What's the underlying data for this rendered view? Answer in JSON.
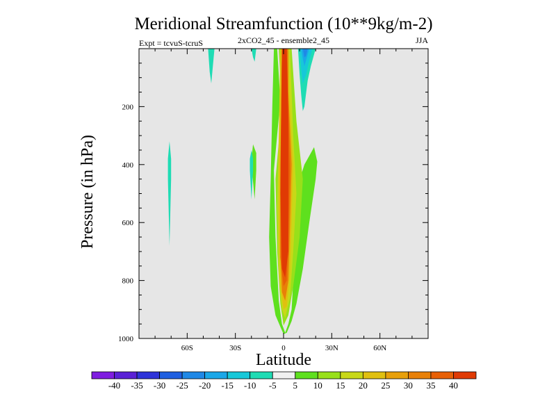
{
  "chart_data": {
    "type": "contour",
    "title": "Meridional Streamfunction (10**9kg/m-2)",
    "subtitle": "2xCO2_45 - ensemble2_45",
    "left_label": "Expt = tcvuS-tcruS",
    "right_label": "JJA",
    "xlabel": "Latitude",
    "ylabel": "Pressure (in hPa)",
    "xlim": [
      -90,
      90
    ],
    "ylim": [
      0,
      1000
    ],
    "y_inverted": true,
    "x_ticks": [
      {
        "value": -60,
        "label": "60S"
      },
      {
        "value": -30,
        "label": "30S"
      },
      {
        "value": 0,
        "label": "0"
      },
      {
        "value": 30,
        "label": "30N"
      },
      {
        "value": 60,
        "label": "60N"
      }
    ],
    "y_ticks": [
      {
        "value": 200,
        "label": "200"
      },
      {
        "value": 400,
        "label": "400"
      },
      {
        "value": 600,
        "label": "600"
      },
      {
        "value": 800,
        "label": "800"
      },
      {
        "value": 1000,
        "label": "1000"
      }
    ],
    "background_color": "#e6e6e6",
    "colorbar": {
      "colors": [
        "#7f1de0",
        "#5a21d6",
        "#2e33d9",
        "#1f5fe0",
        "#1f88e6",
        "#1aa7e8",
        "#17c8d9",
        "#1fdcb4",
        "#f0f0f0",
        "#5ee01e",
        "#98e01a",
        "#c8d818",
        "#e0c010",
        "#e8a00a",
        "#e88008",
        "#e86006",
        "#e03a04"
      ],
      "labels": [
        "-40",
        "-35",
        "-30",
        "-25",
        "-20",
        "-15",
        "-10",
        "-5",
        "5",
        "10",
        "15",
        "20",
        "25",
        "30",
        "35",
        "40"
      ]
    },
    "regions": [
      {
        "level": 10,
        "color": "#5ee01e",
        "poly": [
          [
            -4,
            0
          ],
          [
            -2,
            180
          ],
          [
            -6,
            420
          ],
          [
            -5,
            650
          ],
          [
            -3,
            870
          ],
          [
            -1,
            950
          ],
          [
            1,
            980
          ],
          [
            3,
            950
          ],
          [
            5,
            900
          ],
          [
            7,
            700
          ],
          [
            9,
            470
          ],
          [
            13,
            400
          ],
          [
            16,
            370
          ],
          [
            19,
            340
          ],
          [
            21,
            390
          ],
          [
            20,
            450
          ],
          [
            16,
            600
          ],
          [
            12,
            760
          ],
          [
            8,
            880
          ],
          [
            5,
            940
          ],
          [
            2,
            980
          ],
          [
            0,
            985
          ],
          [
            -2,
            960
          ],
          [
            -5,
            920
          ],
          [
            -8,
            820
          ],
          [
            -9,
            650
          ],
          [
            -8,
            450
          ],
          [
            -7,
            200
          ],
          [
            -6,
            0
          ]
        ]
      },
      {
        "level": 10,
        "color": "#5ee01e",
        "poly": [
          [
            -19,
            330
          ],
          [
            -17,
            360
          ],
          [
            -17,
            420
          ],
          [
            -18,
            520
          ],
          [
            -19,
            460
          ],
          [
            -20,
            380
          ]
        ]
      },
      {
        "level": 15,
        "color": "#98e01a",
        "poly": [
          [
            -3,
            0
          ],
          [
            -1,
            200
          ],
          [
            -5,
            450
          ],
          [
            -4,
            700
          ],
          [
            -2,
            880
          ],
          [
            0,
            955
          ],
          [
            3,
            920
          ],
          [
            6,
            820
          ],
          [
            10,
            650
          ],
          [
            12,
            450
          ],
          [
            10,
            350
          ],
          [
            8,
            250
          ],
          [
            5,
            0
          ]
        ]
      },
      {
        "level": 20,
        "color": "#c8d818",
        "poly": [
          [
            -2,
            0
          ],
          [
            -3,
            300
          ],
          [
            -4,
            550
          ],
          [
            -3,
            780
          ],
          [
            -1,
            900
          ],
          [
            1,
            930
          ],
          [
            4,
            860
          ],
          [
            6,
            700
          ],
          [
            8,
            500
          ],
          [
            6,
            300
          ],
          [
            4,
            0
          ]
        ]
      },
      {
        "level": 25,
        "color": "#e0c010",
        "poly": [
          [
            -2,
            0
          ],
          [
            -3,
            350
          ],
          [
            -3,
            650
          ],
          [
            -2,
            820
          ],
          [
            0,
            900
          ],
          [
            2,
            890
          ],
          [
            4,
            780
          ],
          [
            5,
            600
          ],
          [
            6,
            400
          ],
          [
            4,
            200
          ],
          [
            3,
            0
          ]
        ]
      },
      {
        "level": 30,
        "color": "#e88008",
        "poly": [
          [
            -1,
            0
          ],
          [
            -2,
            400
          ],
          [
            -2,
            700
          ],
          [
            -1,
            840
          ],
          [
            1,
            870
          ],
          [
            3,
            800
          ],
          [
            4,
            620
          ],
          [
            5,
            400
          ],
          [
            3,
            150
          ],
          [
            3,
            0
          ]
        ]
      },
      {
        "level": 35,
        "color": "#e86006",
        "poly": [
          [
            -1,
            0
          ],
          [
            -2,
            450
          ],
          [
            -2,
            720
          ],
          [
            0,
            820
          ],
          [
            2,
            800
          ],
          [
            3,
            650
          ],
          [
            4,
            420
          ],
          [
            3,
            200
          ],
          [
            2,
            0
          ]
        ]
      },
      {
        "level": 40,
        "color": "#e03a04",
        "poly": [
          [
            -1,
            0
          ],
          [
            -2,
            500
          ],
          [
            -1,
            760
          ],
          [
            1,
            790
          ],
          [
            3,
            700
          ],
          [
            3,
            500
          ],
          [
            3,
            250
          ],
          [
            2,
            0
          ]
        ]
      },
      {
        "level": -5,
        "color": "#1fdcb4",
        "poly": [
          [
            -47,
            0
          ],
          [
            -43,
            0
          ],
          [
            -45,
            120
          ],
          [
            -46,
            80
          ]
        ]
      },
      {
        "level": -5,
        "color": "#1fdcb4",
        "poly": [
          [
            -20,
            0
          ],
          [
            -17,
            0
          ],
          [
            -18,
            45
          ],
          [
            -19,
            30
          ]
        ]
      },
      {
        "level": -5,
        "color": "#1fdcb4",
        "poly": [
          [
            -71,
            320
          ],
          [
            -70,
            380
          ],
          [
            -70,
            450
          ],
          [
            -71,
            680
          ],
          [
            -72,
            450
          ],
          [
            -72,
            380
          ]
        ]
      },
      {
        "level": -5,
        "color": "#1fdcb4",
        "poly": [
          [
            -20,
            350
          ],
          [
            -19,
            380
          ],
          [
            -19,
            420
          ],
          [
            -20,
            520
          ],
          [
            -21,
            420
          ],
          [
            -21,
            380
          ]
        ]
      },
      {
        "level": -5,
        "color": "#1fdcb4",
        "poly": [
          [
            9,
            0
          ],
          [
            20,
            0
          ],
          [
            17,
            60
          ],
          [
            15,
            110
          ],
          [
            13,
            200
          ],
          [
            12,
            215
          ],
          [
            11,
            160
          ],
          [
            10,
            90
          ]
        ]
      },
      {
        "level": -10,
        "color": "#17c8d9",
        "poly": [
          [
            10,
            0
          ],
          [
            18,
            0
          ],
          [
            16,
            40
          ],
          [
            14,
            90
          ],
          [
            12,
            120
          ],
          [
            11,
            70
          ]
        ]
      },
      {
        "level": -15,
        "color": "#1aa7e8",
        "poly": [
          [
            11,
            0
          ],
          [
            16,
            0
          ],
          [
            14,
            40
          ],
          [
            13,
            60
          ],
          [
            12,
            35
          ]
        ]
      },
      {
        "level": -20,
        "color": "#1f88e6",
        "poly": [
          [
            12,
            0
          ],
          [
            15,
            0
          ],
          [
            14,
            25
          ],
          [
            13,
            30
          ]
        ]
      }
    ]
  }
}
